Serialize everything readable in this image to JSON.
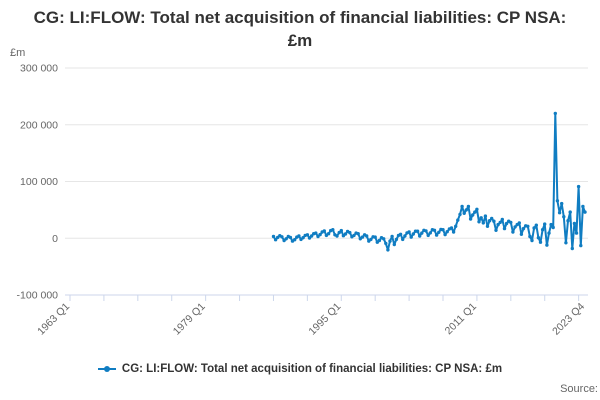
{
  "page": {
    "source_label": "Source:"
  },
  "chart_data": {
    "type": "line",
    "title": "CG: LI:FLOW: Total net acquisition of financial liabilities: CP NSA: £m",
    "legend_position": "bottom",
    "grid": "horizontal-only",
    "colors": {
      "series_blue": "#107dc2",
      "gridline": "#e6e6e6",
      "axis_line": "#ccd6eb",
      "tick_text": "#666666",
      "title_text": "#333333"
    },
    "y_axis": {
      "unit": "£m",
      "min": -100000,
      "max": 300000,
      "tick_interval": 100000,
      "tick_values": [
        300000,
        200000,
        100000,
        0,
        -100000
      ],
      "tick_labels": [
        "300 000",
        "200 000",
        "100 000",
        "0",
        "-100 000"
      ]
    },
    "x_axis": {
      "range_start": 1963.0,
      "range_end": 2023.75,
      "tick_years": [
        1963,
        1967,
        1971,
        1975,
        1979,
        1983,
        1987,
        1991,
        1995,
        1999,
        2003,
        2007,
        2011,
        2015,
        2019,
        2023
      ],
      "labeled_ticks": [
        "1963 Q1",
        "1979 Q1",
        "1995 Q1",
        "2011 Q1",
        "2023 Q4"
      ],
      "labeled_tick_positions": [
        1963.0,
        1979.0,
        1995.0,
        2011.0,
        2023.75
      ]
    },
    "series": [
      {
        "name": "CG: LI:FLOW: Total net acquisition of financial liabilities: CP NSA: £m",
        "color": "#107dc2",
        "start": "1987 Q1",
        "end": "2023 Q4",
        "step_years": 0.25,
        "start_year_fraction": 1987.0,
        "values": [
          3000,
          -2500,
          1500,
          4500,
          2500,
          -4000,
          -1000,
          3000,
          1500,
          -5000,
          -2500,
          2000,
          4000,
          -2000,
          1000,
          5000,
          6000,
          500,
          4000,
          8000,
          9000,
          3000,
          6500,
          11000,
          13000,
          5000,
          8000,
          13500,
          15000,
          6000,
          4000,
          10000,
          13500,
          4500,
          7500,
          12000,
          10000,
          2500,
          5000,
          9000,
          8000,
          -1000,
          2000,
          6000,
          4000,
          -5000,
          -2000,
          2500,
          2000,
          -7000,
          -4000,
          1000,
          -1000,
          -9000,
          -20500,
          -5000,
          3000,
          -11000,
          -2000,
          5000,
          7000,
          -2000,
          4000,
          9500,
          11000,
          2000,
          7500,
          12500,
          12500,
          4000,
          9000,
          14000,
          13000,
          5000,
          9500,
          15000,
          14000,
          5500,
          10500,
          15500,
          15000,
          6500,
          11500,
          16500,
          18000,
          11000,
          21000,
          32000,
          42000,
          56000,
          44000,
          50000,
          56000,
          34000,
          41000,
          46000,
          51000,
          29000,
          36000,
          27000,
          39000,
          21000,
          31000,
          35000,
          30000,
          14000,
          24000,
          28000,
          33000,
          17000,
          26000,
          30000,
          28000,
          11000,
          20000,
          24000,
          27000,
          7000,
          17000,
          22000,
          21000,
          3000,
          -4000,
          18000,
          23000,
          1000,
          -7000,
          15000,
          25000,
          -12000,
          9000,
          24000,
          19000,
          220000,
          66000,
          45000,
          61000,
          38000,
          -8000,
          31000,
          46000,
          -18000,
          26000,
          9000,
          91000,
          -13000,
          56000,
          46000
        ]
      }
    ]
  }
}
